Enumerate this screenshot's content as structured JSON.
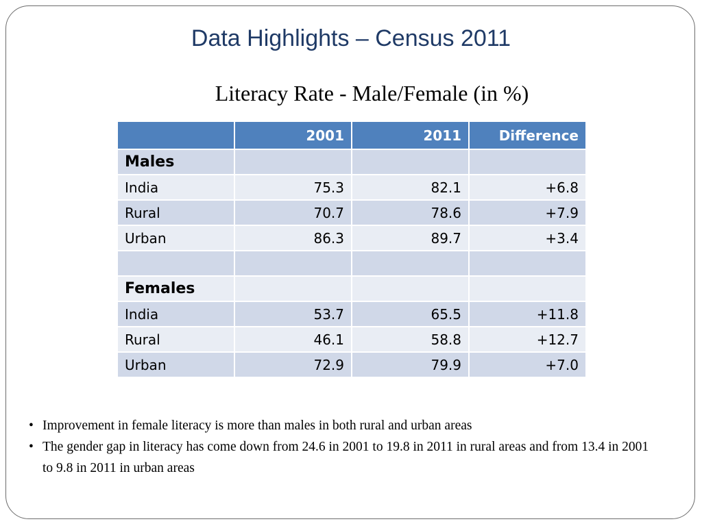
{
  "title": "Data Highlights – Census 2011",
  "subtitle": "Literacy Rate - Male/Female (in %)",
  "table": {
    "headers": [
      "",
      "2001",
      "2011",
      "Difference"
    ],
    "rows": [
      {
        "label": "Males",
        "section": true,
        "v2001": "",
        "v2011": "",
        "diff": ""
      },
      {
        "label": "India",
        "section": false,
        "v2001": "75.3",
        "v2011": "82.1",
        "diff": "+6.8"
      },
      {
        "label": "Rural",
        "section": false,
        "v2001": "70.7",
        "v2011": "78.6",
        "diff": "+7.9"
      },
      {
        "label": "Urban",
        "section": false,
        "v2001": "86.3",
        "v2011": "89.7",
        "diff": "+3.4"
      },
      {
        "label": "",
        "section": false,
        "v2001": "",
        "v2011": "",
        "diff": ""
      },
      {
        "label": "Females",
        "section": true,
        "v2001": "",
        "v2011": "",
        "diff": ""
      },
      {
        "label": "India",
        "section": false,
        "v2001": "53.7",
        "v2011": "65.5",
        "diff": "+11.8"
      },
      {
        "label": "Rural",
        "section": false,
        "v2001": "46.1",
        "v2011": "58.8",
        "diff": "+12.7"
      },
      {
        "label": "Urban",
        "section": false,
        "v2001": "72.9",
        "v2011": "79.9",
        "diff": "+7.0"
      }
    ]
  },
  "bullets": [
    "Improvement in female literacy is more than males in both rural and urban areas",
    "The gender gap in literacy has come down from 24.6 in 2001 to 19.8 in 2011 in rural areas and from 13.4 in 2001 to 9.8  in 2011 in urban areas"
  ],
  "bullet_symbol": "•",
  "colors": {
    "title": "#1f3a66",
    "header_bg": "#4f81bd",
    "row_dark": "#d0d8e8",
    "row_light": "#e9edf4"
  }
}
